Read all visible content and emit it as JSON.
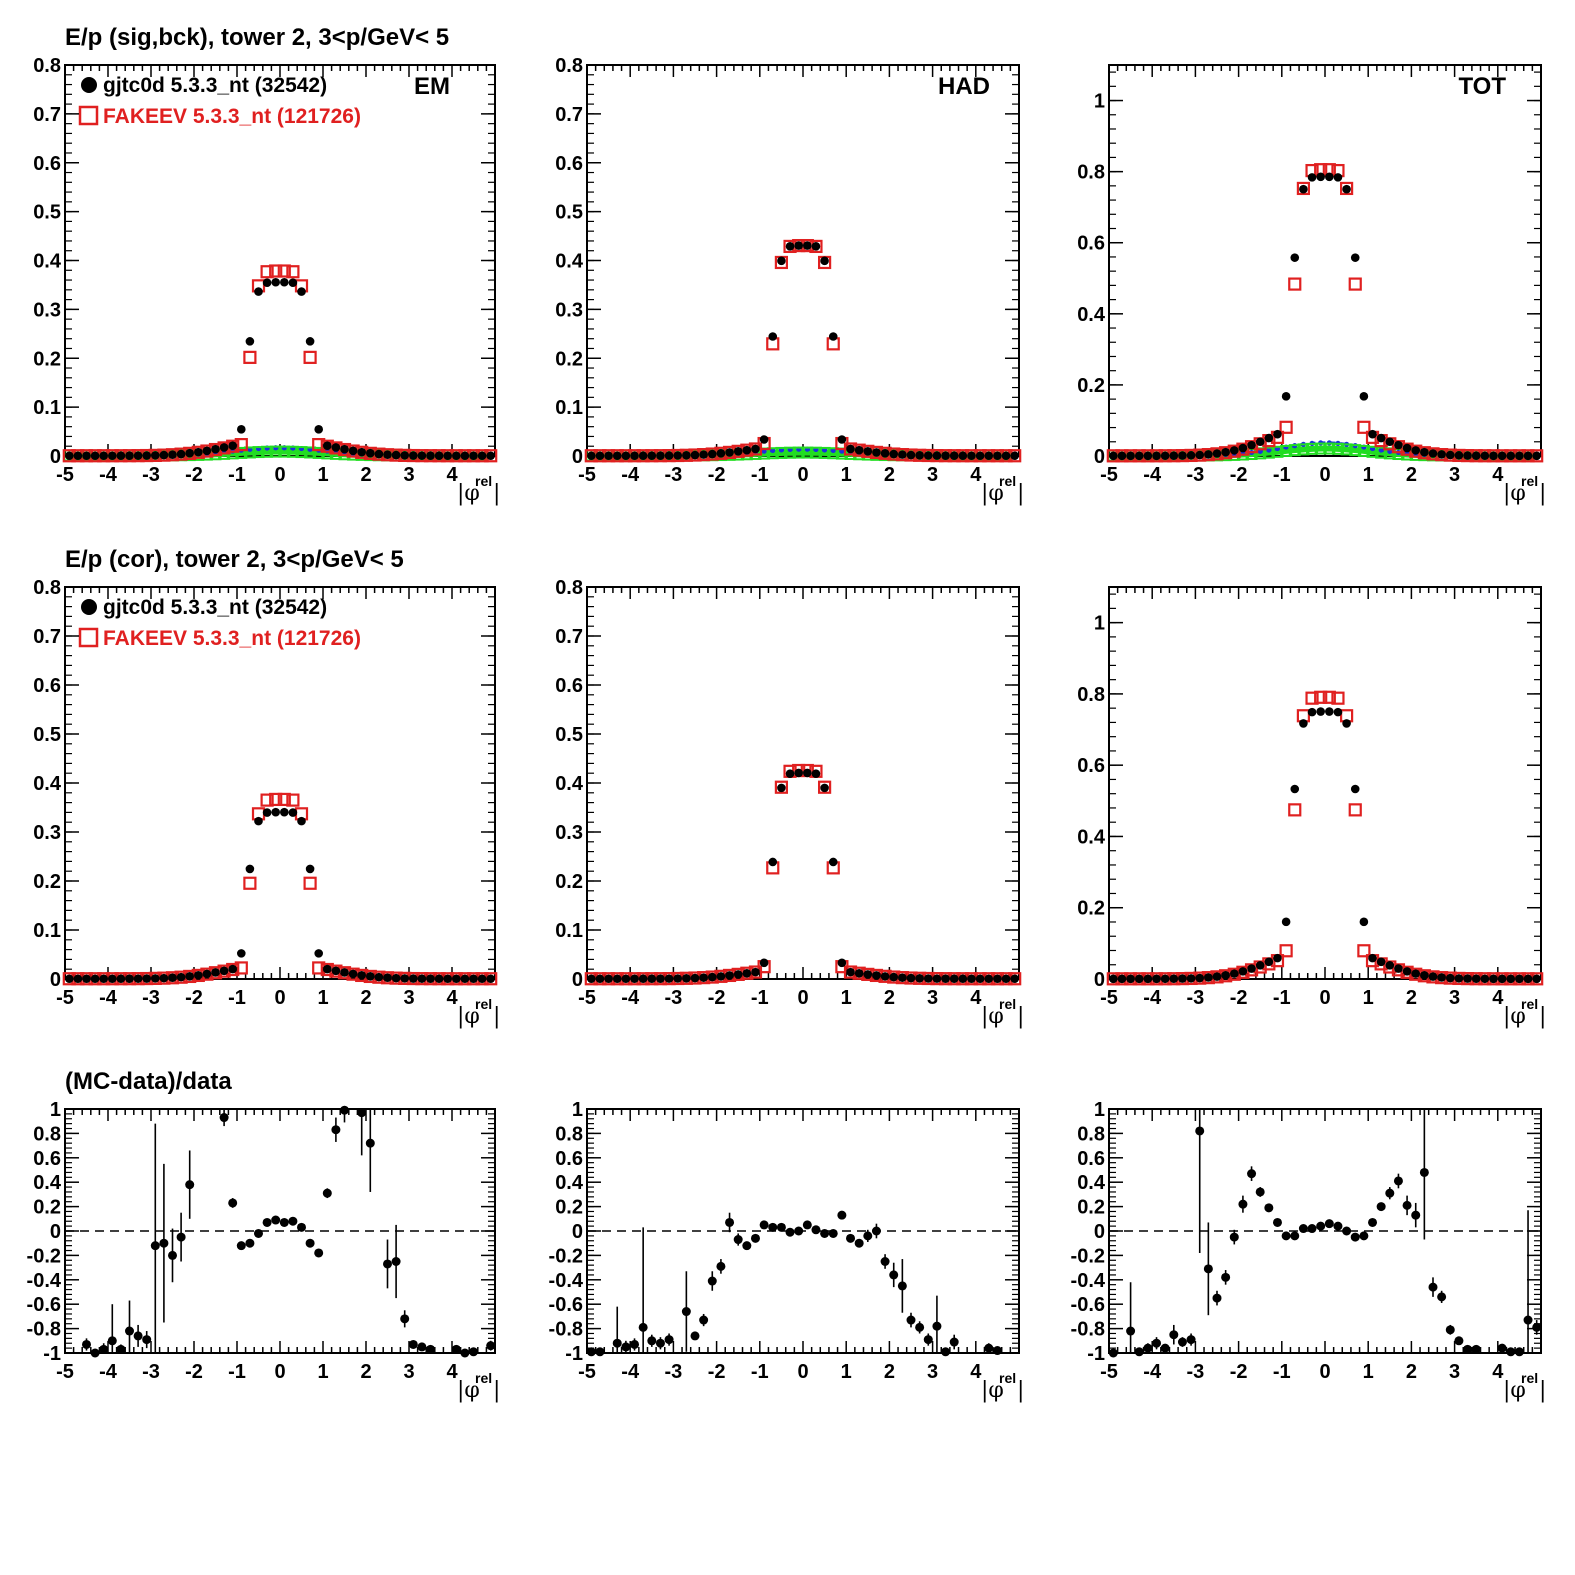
{
  "row_titles": [
    "E/p (sig,bck), tower 2,  3<p/GeV< 5",
    "E/p (cor), tower 2,  3<p/GeV< 5",
    "(MC-data)/data"
  ],
  "panel_tags": [
    "EM",
    "HAD",
    "TOT"
  ],
  "legend": {
    "data_label": "gjtc0d 5.3.3_nt (32542)",
    "mc_label": "FAKEEV 5.3.3_nt (121726)"
  },
  "x_axis_label": {
    "symbol": "|φ",
    "superscript": "rel",
    "closing": "|"
  },
  "colors": {
    "data": "#000000",
    "mc": "#e02020",
    "bck_data": "#1a2fe0",
    "bck_mc": "#22dd22",
    "axis": "#000000",
    "ratio_ref": "#000000"
  },
  "chart_data": [
    {
      "type": "scatter",
      "row": "sig,bck",
      "panel": "EM",
      "xlim": [
        -5,
        5
      ],
      "ylim": [
        0,
        0.8
      ],
      "yticks": [
        "0",
        "0.1",
        "0.2",
        "0.3",
        "0.4",
        "0.5",
        "0.6",
        "0.7",
        "0.8"
      ],
      "series": [
        {
          "name": "gjtc0d 5.3.3_nt (32542)",
          "peak": 0.355,
          "sigma": 0.6,
          "flat": 0.36,
          "tail": 0.09
        },
        {
          "name": "FAKEEV 5.3.3_nt (121726)",
          "peak": 0.378,
          "sigma": 0.56,
          "flat": 0.38,
          "tail": 0.08
        }
      ],
      "background": {
        "data_peak": 0.015,
        "mc_peak": 0.008
      }
    },
    {
      "type": "scatter",
      "row": "sig,bck",
      "panel": "HAD",
      "xlim": [
        -5,
        5
      ],
      "ylim": [
        0,
        0.8
      ],
      "yticks": [
        "0",
        "0.1",
        "0.2",
        "0.3",
        "0.4",
        "0.5",
        "0.6",
        "0.7",
        "0.8"
      ],
      "series": [
        {
          "name": "gjtc0d 5.3.3_nt (32542)",
          "peak": 0.43,
          "sigma": 0.57,
          "flat": 0.42,
          "tail": 0.05
        },
        {
          "name": "FAKEEV 5.3.3_nt (121726)",
          "peak": 0.43,
          "sigma": 0.56,
          "flat": 0.42,
          "tail": 0.05
        }
      ],
      "background": {
        "data_peak": 0.012,
        "mc_peak": 0.006
      }
    },
    {
      "type": "scatter",
      "row": "sig,bck",
      "panel": "TOT",
      "xlim": [
        -5,
        5
      ],
      "ylim": [
        0,
        1.1
      ],
      "yticks": [
        "0",
        "0.2",
        "0.4",
        "0.6",
        "0.8",
        "1"
      ],
      "series": [
        {
          "name": "gjtc0d 5.3.3_nt (32542)",
          "peak": 0.785,
          "sigma": 0.62,
          "flat": 0.78,
          "tail": 0.12
        },
        {
          "name": "FAKEEV 5.3.3_nt (121726)",
          "peak": 0.805,
          "sigma": 0.58,
          "flat": 0.8,
          "tail": 0.1
        }
      ],
      "background": {
        "data_peak": 0.035,
        "mc_peak": 0.02
      }
    },
    {
      "type": "scatter",
      "row": "cor",
      "panel": "EM",
      "xlim": [
        -5,
        5
      ],
      "ylim": [
        0,
        0.8
      ],
      "yticks": [
        "0",
        "0.1",
        "0.2",
        "0.3",
        "0.4",
        "0.5",
        "0.6",
        "0.7",
        "0.8"
      ],
      "series": [
        {
          "name": "gjtc0d 5.3.3_nt (32542)",
          "peak": 0.34,
          "sigma": 0.6,
          "flat": 0.34,
          "tail": 0.09
        },
        {
          "name": "FAKEEV 5.3.3_nt (121726)",
          "peak": 0.366,
          "sigma": 0.56,
          "flat": 0.36,
          "tail": 0.08
        }
      ]
    },
    {
      "type": "scatter",
      "row": "cor",
      "panel": "HAD",
      "xlim": [
        -5,
        5
      ],
      "ylim": [
        0,
        0.8
      ],
      "yticks": [
        "0",
        "0.1",
        "0.2",
        "0.3",
        "0.4",
        "0.5",
        "0.6",
        "0.7",
        "0.8"
      ],
      "series": [
        {
          "name": "gjtc0d 5.3.3_nt (32542)",
          "peak": 0.42,
          "sigma": 0.57,
          "flat": 0.41,
          "tail": 0.05
        },
        {
          "name": "FAKEEV 5.3.3_nt (121726)",
          "peak": 0.425,
          "sigma": 0.56,
          "flat": 0.41,
          "tail": 0.05
        }
      ]
    },
    {
      "type": "scatter",
      "row": "cor",
      "panel": "TOT",
      "xlim": [
        -5,
        5
      ],
      "ylim": [
        0,
        1.1
      ],
      "yticks": [
        "0",
        "0.2",
        "0.4",
        "0.6",
        "0.8",
        "1"
      ],
      "series": [
        {
          "name": "gjtc0d 5.3.3_nt (32542)",
          "peak": 0.75,
          "sigma": 0.62,
          "flat": 0.74,
          "tail": 0.12
        },
        {
          "name": "FAKEEV 5.3.3_nt (121726)",
          "peak": 0.79,
          "sigma": 0.58,
          "flat": 0.77,
          "tail": 0.1
        }
      ]
    },
    {
      "type": "scatter",
      "row": "ratio",
      "panel": "EM",
      "xlim": [
        -5,
        5
      ],
      "ylim": [
        -1,
        1
      ],
      "yticks": [
        "-1",
        "-0.8",
        "-0.6",
        "-0.4",
        "-0.2",
        "0",
        "0.2",
        "0.4",
        "0.6",
        "0.8",
        "1"
      ],
      "reference_line": 0,
      "points": [
        [
          -4.5,
          -0.93,
          0.05
        ],
        [
          -4.3,
          -1.0,
          0.02
        ],
        [
          -4.1,
          -0.97,
          0.05
        ],
        [
          -3.9,
          -0.9,
          0.3
        ],
        [
          -3.7,
          -0.97,
          0.04
        ],
        [
          -3.5,
          -0.82,
          0.25
        ],
        [
          -3.3,
          -0.86,
          0.09
        ],
        [
          -3.1,
          -0.89,
          0.07
        ],
        [
          -2.9,
          -0.12,
          1.0
        ],
        [
          -2.7,
          -0.1,
          0.65
        ],
        [
          -2.5,
          -0.2,
          0.22
        ],
        [
          -2.3,
          -0.05,
          0.2
        ],
        [
          -2.1,
          0.38,
          0.28
        ],
        [
          -1.3,
          0.93,
          0.07
        ],
        [
          -1.1,
          0.23,
          0.04
        ],
        [
          -0.9,
          -0.12,
          0.03
        ],
        [
          -0.7,
          -0.1,
          0.03
        ],
        [
          -0.5,
          -0.02,
          0.02
        ],
        [
          -0.3,
          0.07,
          0.02
        ],
        [
          -0.1,
          0.09,
          0.02
        ],
        [
          0.1,
          0.07,
          0.02
        ],
        [
          0.3,
          0.08,
          0.02
        ],
        [
          0.5,
          0.03,
          0.02
        ],
        [
          0.7,
          -0.1,
          0.03
        ],
        [
          0.9,
          -0.18,
          0.03
        ],
        [
          1.1,
          0.31,
          0.04
        ],
        [
          1.3,
          0.83,
          0.1
        ],
        [
          1.5,
          0.99,
          0.1
        ],
        [
          1.9,
          0.97,
          0.35
        ],
        [
          2.1,
          0.72,
          0.4
        ],
        [
          2.5,
          -0.27,
          0.2
        ],
        [
          2.7,
          -0.25,
          0.3
        ],
        [
          2.9,
          -0.72,
          0.07
        ],
        [
          3.1,
          -0.93,
          0.03
        ],
        [
          3.3,
          -0.95,
          0.03
        ],
        [
          3.5,
          -0.97,
          0.02
        ],
        [
          4.1,
          -0.97,
          0.03
        ],
        [
          4.3,
          -1.0,
          0.02
        ],
        [
          4.5,
          -0.99,
          0.02
        ],
        [
          4.9,
          -0.94,
          0.04
        ]
      ]
    },
    {
      "type": "scatter",
      "row": "ratio",
      "panel": "HAD",
      "xlim": [
        -5,
        5
      ],
      "ylim": [
        -1,
        1
      ],
      "yticks": [
        "-1",
        "-0.8",
        "-0.6",
        "-0.4",
        "-0.2",
        "0",
        "0.2",
        "0.4",
        "0.6",
        "0.8",
        "1"
      ],
      "reference_line": 0,
      "points": [
        [
          -4.9,
          -0.99,
          0.02
        ],
        [
          -4.7,
          -0.99,
          0.02
        ],
        [
          -4.3,
          -0.92,
          0.3
        ],
        [
          -4.1,
          -0.95,
          0.05
        ],
        [
          -3.9,
          -0.93,
          0.05
        ],
        [
          -3.7,
          -0.79,
          0.82
        ],
        [
          -3.5,
          -0.9,
          0.05
        ],
        [
          -3.3,
          -0.92,
          0.05
        ],
        [
          -3.1,
          -0.89,
          0.05
        ],
        [
          -2.7,
          -0.66,
          0.33
        ],
        [
          -2.5,
          -0.86,
          0.03
        ],
        [
          -2.3,
          -0.73,
          0.05
        ],
        [
          -2.1,
          -0.41,
          0.08
        ],
        [
          -1.9,
          -0.29,
          0.06
        ],
        [
          -1.7,
          0.07,
          0.08
        ],
        [
          -1.5,
          -0.07,
          0.05
        ],
        [
          -1.3,
          -0.12,
          0.03
        ],
        [
          -1.1,
          -0.06,
          0.03
        ],
        [
          -0.9,
          0.05,
          0.02
        ],
        [
          -0.7,
          0.03,
          0.02
        ],
        [
          -0.5,
          0.03,
          0.02
        ],
        [
          -0.3,
          -0.01,
          0.02
        ],
        [
          -0.1,
          0.0,
          0.02
        ],
        [
          0.1,
          0.05,
          0.02
        ],
        [
          0.3,
          0.01,
          0.02
        ],
        [
          0.5,
          -0.02,
          0.02
        ],
        [
          0.7,
          -0.02,
          0.02
        ],
        [
          0.9,
          0.13,
          0.02
        ],
        [
          1.1,
          -0.06,
          0.03
        ],
        [
          1.3,
          -0.1,
          0.03
        ],
        [
          1.5,
          -0.04,
          0.05
        ],
        [
          1.7,
          0.0,
          0.06
        ],
        [
          1.9,
          -0.25,
          0.06
        ],
        [
          2.1,
          -0.36,
          0.1
        ],
        [
          2.3,
          -0.45,
          0.22
        ],
        [
          2.5,
          -0.73,
          0.06
        ],
        [
          2.7,
          -0.79,
          0.05
        ],
        [
          2.9,
          -0.89,
          0.05
        ],
        [
          3.1,
          -0.78,
          0.25
        ],
        [
          3.3,
          -0.99,
          0.02
        ],
        [
          3.5,
          -0.91,
          0.06
        ],
        [
          4.3,
          -0.96,
          0.04
        ],
        [
          4.5,
          -0.98,
          0.02
        ]
      ]
    },
    {
      "type": "scatter",
      "row": "ratio",
      "panel": "TOT",
      "xlim": [
        -5,
        5
      ],
      "ylim": [
        -1,
        1
      ],
      "yticks": [
        "-1",
        "-0.8",
        "-0.6",
        "-0.4",
        "-0.2",
        "0",
        "0.2",
        "0.4",
        "0.6",
        "0.8",
        "1"
      ],
      "reference_line": 0,
      "points": [
        [
          -4.9,
          -1.0,
          0.02
        ],
        [
          -4.5,
          -0.82,
          0.4
        ],
        [
          -4.3,
          -0.99,
          0.02
        ],
        [
          -4.1,
          -0.96,
          0.04
        ],
        [
          -3.9,
          -0.92,
          0.05
        ],
        [
          -3.7,
          -0.96,
          0.03
        ],
        [
          -3.5,
          -0.85,
          0.08
        ],
        [
          -3.3,
          -0.91,
          0.04
        ],
        [
          -3.1,
          -0.89,
          0.05
        ],
        [
          -2.9,
          0.82,
          1.0
        ],
        [
          -2.7,
          -0.31,
          0.38
        ],
        [
          -2.5,
          -0.55,
          0.06
        ],
        [
          -2.3,
          -0.38,
          0.06
        ],
        [
          -2.1,
          -0.05,
          0.06
        ],
        [
          -1.9,
          0.22,
          0.07
        ],
        [
          -1.7,
          0.47,
          0.06
        ],
        [
          -1.5,
          0.32,
          0.04
        ],
        [
          -1.3,
          0.19,
          0.03
        ],
        [
          -1.1,
          0.07,
          0.02
        ],
        [
          -0.9,
          -0.04,
          0.02
        ],
        [
          -0.7,
          -0.04,
          0.02
        ],
        [
          -0.5,
          0.02,
          0.02
        ],
        [
          -0.3,
          0.02,
          0.02
        ],
        [
          -0.1,
          0.04,
          0.02
        ],
        [
          0.1,
          0.06,
          0.02
        ],
        [
          0.3,
          0.04,
          0.02
        ],
        [
          0.5,
          0.0,
          0.02
        ],
        [
          0.7,
          -0.05,
          0.02
        ],
        [
          0.9,
          -0.04,
          0.02
        ],
        [
          1.1,
          0.07,
          0.02
        ],
        [
          1.3,
          0.2,
          0.03
        ],
        [
          1.5,
          0.31,
          0.05
        ],
        [
          1.7,
          0.41,
          0.06
        ],
        [
          1.9,
          0.21,
          0.08
        ],
        [
          2.1,
          0.13,
          0.1
        ],
        [
          2.3,
          0.48,
          0.55
        ],
        [
          2.5,
          -0.46,
          0.08
        ],
        [
          2.7,
          -0.54,
          0.05
        ],
        [
          2.9,
          -0.81,
          0.04
        ],
        [
          3.1,
          -0.9,
          0.03
        ],
        [
          3.3,
          -0.97,
          0.02
        ],
        [
          3.5,
          -0.97,
          0.02
        ],
        [
          4.1,
          -0.96,
          0.03
        ],
        [
          4.3,
          -0.99,
          0.02
        ],
        [
          4.5,
          -0.99,
          0.02
        ],
        [
          4.7,
          -0.73,
          0.9
        ],
        [
          4.9,
          -0.79,
          0.06
        ]
      ]
    }
  ]
}
